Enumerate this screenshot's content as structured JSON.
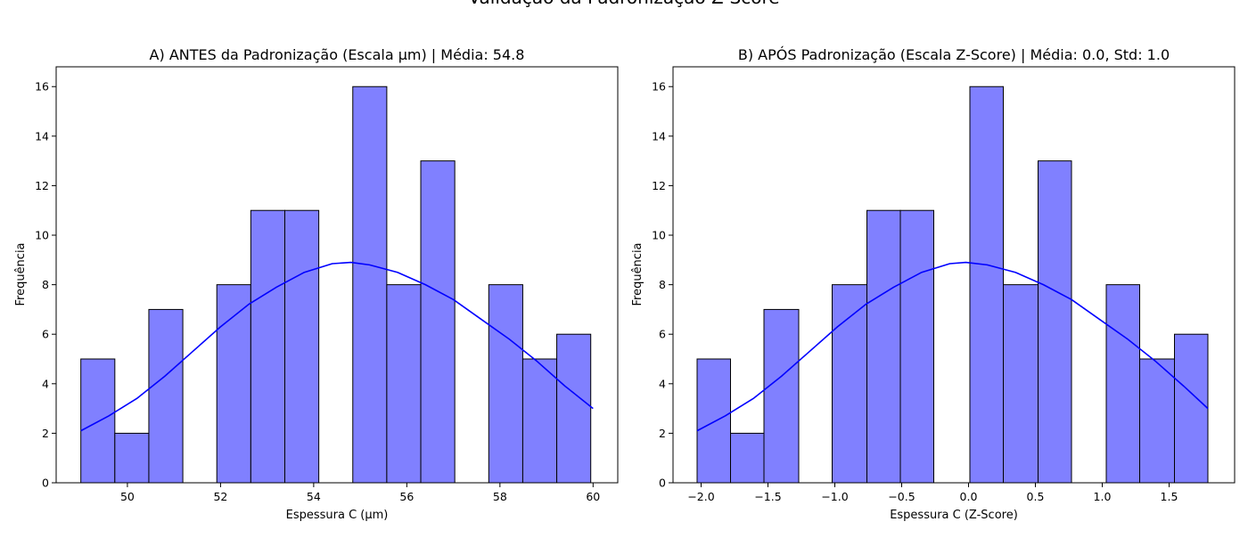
{
  "suptitle": "Validação da Padronização Z-Score",
  "colors": {
    "bar_fill": "#8080ff",
    "bar_edge": "#000000",
    "kde": "#0000ff"
  },
  "chart_data": [
    {
      "type": "bar",
      "title": "A) ANTES da Padronização (Escala µm) | Média: 54.8",
      "xlabel": "Espessura C (µm)",
      "ylabel": "Frequência",
      "xlim": [
        48.47,
        60.53
      ],
      "ylim": [
        0,
        16.8
      ],
      "xticks": [
        50,
        52,
        54,
        56,
        58,
        60
      ],
      "xtick_labels": [
        "50",
        "52",
        "54",
        "56",
        "58",
        "60"
      ],
      "yticks": [
        0,
        2,
        4,
        6,
        8,
        10,
        12,
        14,
        16
      ],
      "ytick_labels": [
        "0",
        "2",
        "4",
        "6",
        "8",
        "10",
        "12",
        "14",
        "16"
      ],
      "bins": [
        [
          49.0,
          49.73,
          5
        ],
        [
          49.73,
          50.46,
          2
        ],
        [
          50.46,
          51.19,
          7
        ],
        [
          51.19,
          51.92,
          0
        ],
        [
          51.92,
          52.65,
          8
        ],
        [
          52.65,
          53.38,
          11
        ],
        [
          53.38,
          54.11,
          11
        ],
        [
          54.11,
          54.84,
          0
        ],
        [
          54.84,
          55.57,
          16
        ],
        [
          55.57,
          56.3,
          8
        ],
        [
          56.3,
          57.03,
          13
        ],
        [
          57.03,
          57.76,
          0
        ],
        [
          57.76,
          58.49,
          8
        ],
        [
          58.49,
          59.22,
          5
        ],
        [
          59.22,
          59.95,
          6
        ]
      ],
      "kde": [
        [
          49.0,
          2.1
        ],
        [
          49.6,
          2.7
        ],
        [
          50.2,
          3.4
        ],
        [
          50.8,
          4.3
        ],
        [
          51.4,
          5.3
        ],
        [
          52.0,
          6.3
        ],
        [
          52.6,
          7.2
        ],
        [
          53.2,
          7.9
        ],
        [
          53.8,
          8.5
        ],
        [
          54.4,
          8.85
        ],
        [
          54.8,
          8.9
        ],
        [
          55.2,
          8.8
        ],
        [
          55.8,
          8.5
        ],
        [
          56.4,
          8.0
        ],
        [
          57.0,
          7.4
        ],
        [
          57.6,
          6.6
        ],
        [
          58.2,
          5.8
        ],
        [
          58.8,
          4.9
        ],
        [
          59.4,
          3.9
        ],
        [
          60.0,
          3.0
        ]
      ]
    },
    {
      "type": "bar",
      "title": "B) APÓS Padronização (Escala Z-Score) | Média: 0.0, Std: 1.0",
      "xlabel": "Espessura C (Z-Score)",
      "ylabel": "Frequência",
      "xlim": [
        -2.21,
        1.99
      ],
      "ylim": [
        0,
        16.8
      ],
      "xticks": [
        -2.0,
        -1.5,
        -1.0,
        -0.5,
        0.0,
        0.5,
        1.0,
        1.5
      ],
      "xtick_labels": [
        "−2.0",
        "−1.5",
        "−1.0",
        "−0.5",
        "0.0",
        "0.5",
        "1.0",
        "1.5"
      ],
      "yticks": [
        0,
        2,
        4,
        6,
        8,
        10,
        12,
        14,
        16
      ],
      "ytick_labels": [
        "0",
        "2",
        "4",
        "6",
        "8",
        "10",
        "12",
        "14",
        "16"
      ],
      "bins": [
        [
          -2.03,
          -1.78,
          5
        ],
        [
          -1.78,
          -1.53,
          2
        ],
        [
          -1.53,
          -1.27,
          7
        ],
        [
          -1.27,
          -1.02,
          0
        ],
        [
          -1.02,
          -0.76,
          8
        ],
        [
          -0.76,
          -0.51,
          11
        ],
        [
          -0.51,
          -0.26,
          11
        ],
        [
          -0.26,
          0.01,
          0
        ],
        [
          0.01,
          0.26,
          16
        ],
        [
          0.26,
          0.52,
          8
        ],
        [
          0.52,
          0.77,
          13
        ],
        [
          0.77,
          1.03,
          0
        ],
        [
          1.03,
          1.28,
          8
        ],
        [
          1.28,
          1.54,
          5
        ],
        [
          1.54,
          1.79,
          6
        ]
      ],
      "kde": [
        [
          -2.03,
          2.1
        ],
        [
          -1.82,
          2.7
        ],
        [
          -1.61,
          3.4
        ],
        [
          -1.4,
          4.3
        ],
        [
          -1.19,
          5.3
        ],
        [
          -0.98,
          6.3
        ],
        [
          -0.77,
          7.2
        ],
        [
          -0.56,
          7.9
        ],
        [
          -0.35,
          8.5
        ],
        [
          -0.14,
          8.85
        ],
        [
          -0.02,
          8.9
        ],
        [
          0.14,
          8.8
        ],
        [
          0.35,
          8.5
        ],
        [
          0.56,
          8.0
        ],
        [
          0.77,
          7.4
        ],
        [
          0.98,
          6.6
        ],
        [
          1.19,
          5.8
        ],
        [
          1.4,
          4.9
        ],
        [
          1.61,
          3.9
        ],
        [
          1.79,
          3.0
        ]
      ]
    }
  ]
}
